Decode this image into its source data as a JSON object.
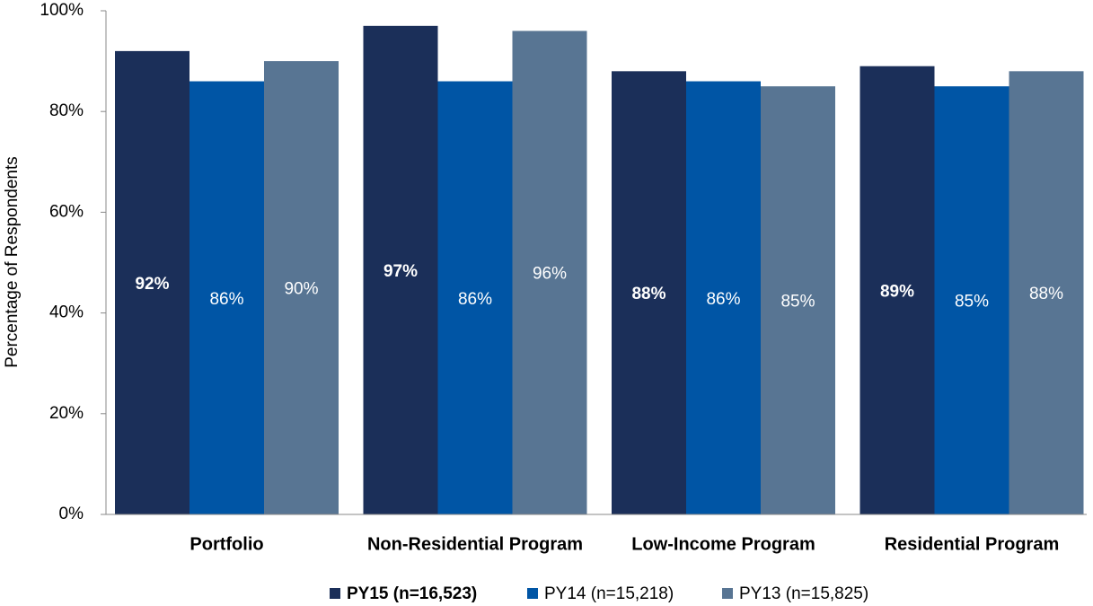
{
  "chart_data": {
    "type": "bar",
    "y_label": "Percentage of Respondents",
    "categories": [
      "Portfolio",
      "Non-Residential Program",
      "Low-Income Program",
      "Residential Program"
    ],
    "series": [
      {
        "name": "PY15 (n=16,523)",
        "color": "#1b2f59",
        "values": [
          92,
          97,
          88,
          89
        ],
        "value_labels": [
          "92%",
          "97%",
          "88%",
          "89%"
        ]
      },
      {
        "name": "PY14 (n=15,218)",
        "color": "#0055a5",
        "values": [
          86,
          86,
          86,
          85
        ],
        "value_labels": [
          "86%",
          "86%",
          "86%",
          "85%"
        ]
      },
      {
        "name": "PY13 (n=15,825)",
        "color": "#587593",
        "values": [
          90,
          96,
          85,
          88
        ],
        "value_labels": [
          "90%",
          "96%",
          "85%",
          "88%"
        ]
      }
    ],
    "ylim": [
      0,
      100
    ],
    "yticks": [
      {
        "value": 0,
        "label": "0%"
      },
      {
        "value": 20,
        "label": "20%"
      },
      {
        "value": 40,
        "label": "40%"
      },
      {
        "value": 60,
        "label": "60%"
      },
      {
        "value": 80,
        "label": "80%"
      },
      {
        "value": 100,
        "label": "100%"
      }
    ],
    "legend": "bottom"
  }
}
